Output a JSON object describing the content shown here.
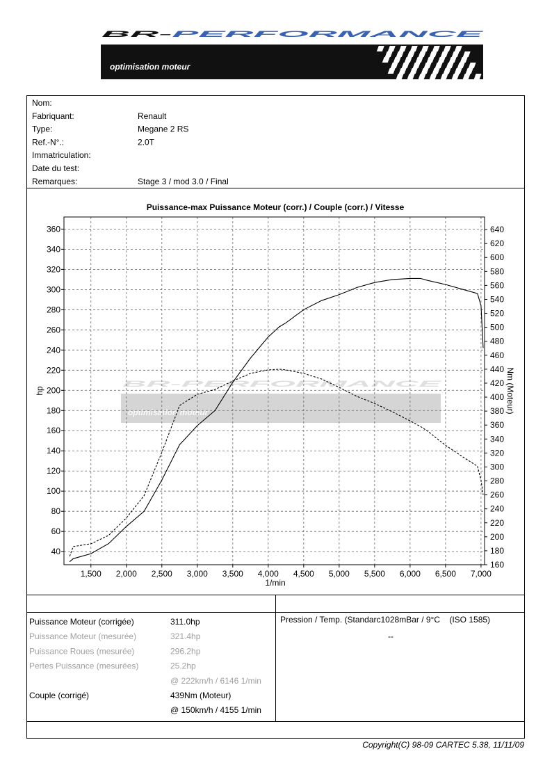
{
  "header": {
    "brand": [
      "BR-",
      "PERFORMANCE"
    ],
    "tagline": "optimisation moteur"
  },
  "info": [
    {
      "label": "Nom:"
    },
    {
      "label": "Fabriquant:",
      "value": "Renault"
    },
    {
      "label": "Type:",
      "value": "Megane 2 RS"
    },
    {
      "label": "Ref.-N°.:",
      "value": "2.0T"
    },
    {
      "label": "Immatriculation:"
    },
    {
      "label": "Date du test:"
    },
    {
      "label": "Remarques:",
      "value": "Stage 3 / mod 3.0 / Final"
    }
  ],
  "chart_data": {
    "type": "line",
    "title": "Puissance-max Puissance Moteur (corr.) / Couple (corr.) / Vitesse",
    "ylabel": "hp",
    "y2label": "Nm (Moteur)",
    "xlabel": "1/min",
    "grid": true,
    "x": [
      1200,
      1250,
      1500,
      1750,
      2000,
      2250,
      2500,
      2750,
      3000,
      3250,
      3500,
      3750,
      4000,
      4155,
      4250,
      4500,
      4750,
      5000,
      5250,
      5500,
      5750,
      6000,
      6146,
      6250,
      6500,
      6750,
      6950,
      7000,
      7030
    ],
    "series": [
      {
        "color": "#000000",
        "style": "solid",
        "values": [
          30,
          33,
          38,
          48,
          65,
          80,
          111,
          146,
          165,
          180,
          208,
          232,
          253,
          263,
          267,
          280,
          289,
          295,
          302,
          307,
          310,
          311,
          311,
          309,
          305,
          300,
          296,
          284,
          242
        ]
      },
      {
        "color": "#000000",
        "style": "dashed",
        "axis": "y2",
        "values": [
          172,
          186,
          190,
          202,
          227,
          259,
          321,
          388,
          404,
          411,
          423,
          434,
          439,
          440,
          439,
          434,
          426,
          414,
          401,
          391,
          379,
          366,
          358,
          351,
          331,
          314,
          301,
          281,
          260
        ]
      }
    ],
    "xlim": [
      1120,
      7050
    ],
    "xticks": [
      {
        "value": 1500,
        "label": "1,500"
      },
      {
        "value": 2000,
        "label": "2,000"
      },
      {
        "value": 2500,
        "label": "2,500"
      },
      {
        "value": 3000,
        "label": "3,000"
      },
      {
        "value": 3500,
        "label": "3,500"
      },
      {
        "value": 4000,
        "label": "4,000"
      },
      {
        "value": 4500,
        "label": "4,500"
      },
      {
        "value": 5000,
        "label": "5,000"
      },
      {
        "value": 5500,
        "label": "5,500"
      },
      {
        "value": 6000,
        "label": "6,000"
      },
      {
        "value": 6500,
        "label": "6,500"
      },
      {
        "value": 7000,
        "label": "7,000"
      }
    ],
    "ylim": [
      27,
      372
    ],
    "yticks": [
      40,
      60,
      80,
      100,
      120,
      140,
      160,
      180,
      200,
      220,
      240,
      260,
      280,
      300,
      320,
      340,
      360
    ],
    "y2lim": [
      160,
      658
    ],
    "y2ticks": [
      160,
      180,
      200,
      220,
      240,
      260,
      280,
      300,
      320,
      340,
      360,
      380,
      400,
      420,
      440,
      460,
      480,
      500,
      520,
      540,
      560,
      580,
      600,
      620,
      640
    ]
  },
  "results": [
    {
      "label": "Puissance Moteur (corrigée)",
      "value": "311.0hp"
    },
    {
      "label": "Puissance Moteur (mesurée)",
      "value": "321.4hp",
      "muted": true
    },
    {
      "label": "Puissance Roues (mesurée)",
      "value": "296.2hp",
      "muted": true
    },
    {
      "label": "Pertes Puissance (mesurées)",
      "value": "25.2hp",
      "muted": true
    },
    {
      "value": "@ 222km/h / 6146 1/min",
      "muted": true
    },
    {
      "label": "Couple (corrigé)",
      "value": "439Nm (Moteur)"
    },
    {
      "value": "@ 150km/h / 4155 1/min"
    }
  ],
  "conditions": {
    "label": "Pression / Temp. (Standarc1028mBar / 9°C    (ISO 1585)",
    "value": "--"
  },
  "footer": "Copyright(C) 98-09 CARTEC 5.38, 11/11/09"
}
